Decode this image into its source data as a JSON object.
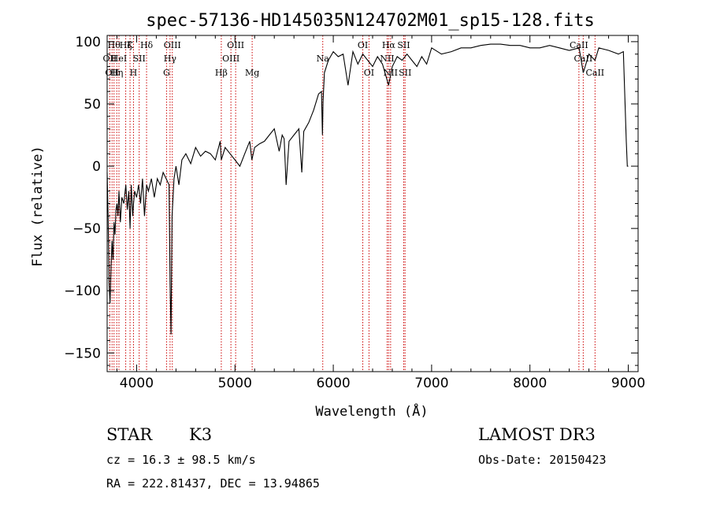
{
  "chart_data": {
    "type": "line",
    "title": "spec-57136-HD145035N124702M01_sp15-128.fits",
    "xlabel": "Wavelength (Å)",
    "ylabel": "Flux (relative)",
    "xlim": [
      3700,
      9100
    ],
    "ylim": [
      -165,
      105
    ],
    "xticks": [
      4000,
      5000,
      6000,
      7000,
      8000,
      9000
    ],
    "yticks": [
      100,
      50,
      0,
      -50,
      -100,
      -150
    ],
    "xtick_labels": [
      "4000",
      "5000",
      "6000",
      "7000",
      "8000",
      "9000"
    ],
    "ytick_labels": [
      "100",
      "50",
      "0",
      "−50",
      "−100",
      "−150"
    ],
    "spectrum": {
      "x": [
        3700,
        3710,
        3720,
        3730,
        3740,
        3750,
        3760,
        3770,
        3780,
        3790,
        3800,
        3810,
        3820,
        3835,
        3850,
        3870,
        3890,
        3905,
        3920,
        3933,
        3945,
        3960,
        3968,
        3980,
        4000,
        4020,
        4040,
        4060,
        4080,
        4101,
        4120,
        4150,
        4180,
        4210,
        4240,
        4270,
        4300,
        4330,
        4340,
        4350,
        4360,
        4380,
        4400,
        4430,
        4460,
        4500,
        4550,
        4600,
        4650,
        4700,
        4750,
        4800,
        4850,
        4861,
        4900,
        4950,
        5000,
        5050,
        5100,
        5150,
        5172,
        5200,
        5250,
        5300,
        5350,
        5400,
        5450,
        5480,
        5500,
        5520,
        5550,
        5600,
        5650,
        5680,
        5700,
        5750,
        5800,
        5850,
        5880,
        5890,
        5896,
        5910,
        5950,
        6000,
        6050,
        6100,
        6150,
        6200,
        6250,
        6300,
        6350,
        6400,
        6450,
        6500,
        6563,
        6600,
        6650,
        6700,
        6750,
        6800,
        6850,
        6900,
        6950,
        7000,
        7100,
        7200,
        7300,
        7400,
        7500,
        7600,
        7700,
        7800,
        7900,
        8000,
        8100,
        8200,
        8300,
        8400,
        8500,
        8542,
        8600,
        8662,
        8700,
        8800,
        8900,
        8950,
        8980,
        8990,
        9000
      ],
      "y": [
        -5,
        -40,
        -95,
        -110,
        -80,
        -60,
        -75,
        -45,
        -55,
        -35,
        -30,
        -40,
        -20,
        -45,
        -25,
        -30,
        -15,
        -35,
        -20,
        -50,
        -15,
        -40,
        -30,
        -20,
        -25,
        -15,
        -30,
        -10,
        -40,
        -15,
        -20,
        -10,
        -25,
        -10,
        -15,
        -5,
        -10,
        -15,
        -95,
        -135,
        -40,
        -10,
        0,
        -15,
        5,
        10,
        2,
        15,
        8,
        12,
        10,
        5,
        20,
        5,
        15,
        10,
        5,
        0,
        10,
        20,
        5,
        15,
        18,
        20,
        25,
        30,
        12,
        25,
        22,
        -15,
        20,
        25,
        30,
        -5,
        28,
        35,
        45,
        58,
        60,
        25,
        52,
        75,
        85,
        92,
        88,
        90,
        65,
        92,
        82,
        90,
        85,
        80,
        88,
        82,
        65,
        80,
        88,
        85,
        90,
        85,
        80,
        88,
        82,
        95,
        90,
        92,
        95,
        95,
        97,
        98,
        98,
        97,
        97,
        95,
        95,
        97,
        95,
        93,
        95,
        75,
        90,
        85,
        95,
        93,
        90,
        92,
        20,
        0,
        0
      ]
    },
    "spectral_lines": [
      {
        "wave": 3727,
        "label": "OII",
        "row": 1
      },
      {
        "wave": 3750,
        "label": "OII",
        "row": 2
      },
      {
        "wave": 3770,
        "label": "Hθ",
        "row": 0
      },
      {
        "wave": 3798,
        "label": "Hη",
        "row": 2
      },
      {
        "wave": 3820,
        "label": "HeI",
        "row": 1
      },
      {
        "wave": 3889,
        "label": "Hζ",
        "row": 0
      },
      {
        "wave": 3933,
        "label": "K",
        "row": 0
      },
      {
        "wave": 3968,
        "label": "H",
        "row": 2
      },
      {
        "wave": 4026,
        "label": "SII",
        "row": 1
      },
      {
        "wave": 4101,
        "label": "Hδ",
        "row": 0
      },
      {
        "wave": 4304,
        "label": "G",
        "row": 2
      },
      {
        "wave": 4340,
        "label": "Hγ",
        "row": 1
      },
      {
        "wave": 4363,
        "label": "OIII",
        "row": 0
      },
      {
        "wave": 4861,
        "label": "Hβ",
        "row": 2
      },
      {
        "wave": 4959,
        "label": "OIII",
        "row": 1
      },
      {
        "wave": 5007,
        "label": "OIII",
        "row": 0
      },
      {
        "wave": 5175,
        "label": "Mg",
        "row": 2
      },
      {
        "wave": 5893,
        "label": "Na",
        "row": 1
      },
      {
        "wave": 6300,
        "label": "OI",
        "row": 0
      },
      {
        "wave": 6363,
        "label": "OI",
        "row": 2
      },
      {
        "wave": 6548,
        "label": "NII",
        "row": 1
      },
      {
        "wave": 6563,
        "label": "Hα",
        "row": 0
      },
      {
        "wave": 6583,
        "label": "NII",
        "row": 2
      },
      {
        "wave": 6716,
        "label": "SII",
        "row": 0
      },
      {
        "wave": 6730,
        "label": "SII",
        "row": 2
      },
      {
        "wave": 8498,
        "label": "CaII",
        "row": 0
      },
      {
        "wave": 8542,
        "label": "CaII",
        "row": 1
      },
      {
        "wave": 8662,
        "label": "CaII",
        "row": 2
      }
    ],
    "line_color": "#000000",
    "marker_color": "#cc0000",
    "grid": false
  },
  "info": {
    "object_class": "STAR",
    "subclass": "K3",
    "survey": "LAMOST DR3",
    "cz": "cz = 16.3 ± 98.5 km/s",
    "obs_date": "Obs-Date: 20150423",
    "coords": "RA = 222.81437, DEC =  13.94865"
  }
}
